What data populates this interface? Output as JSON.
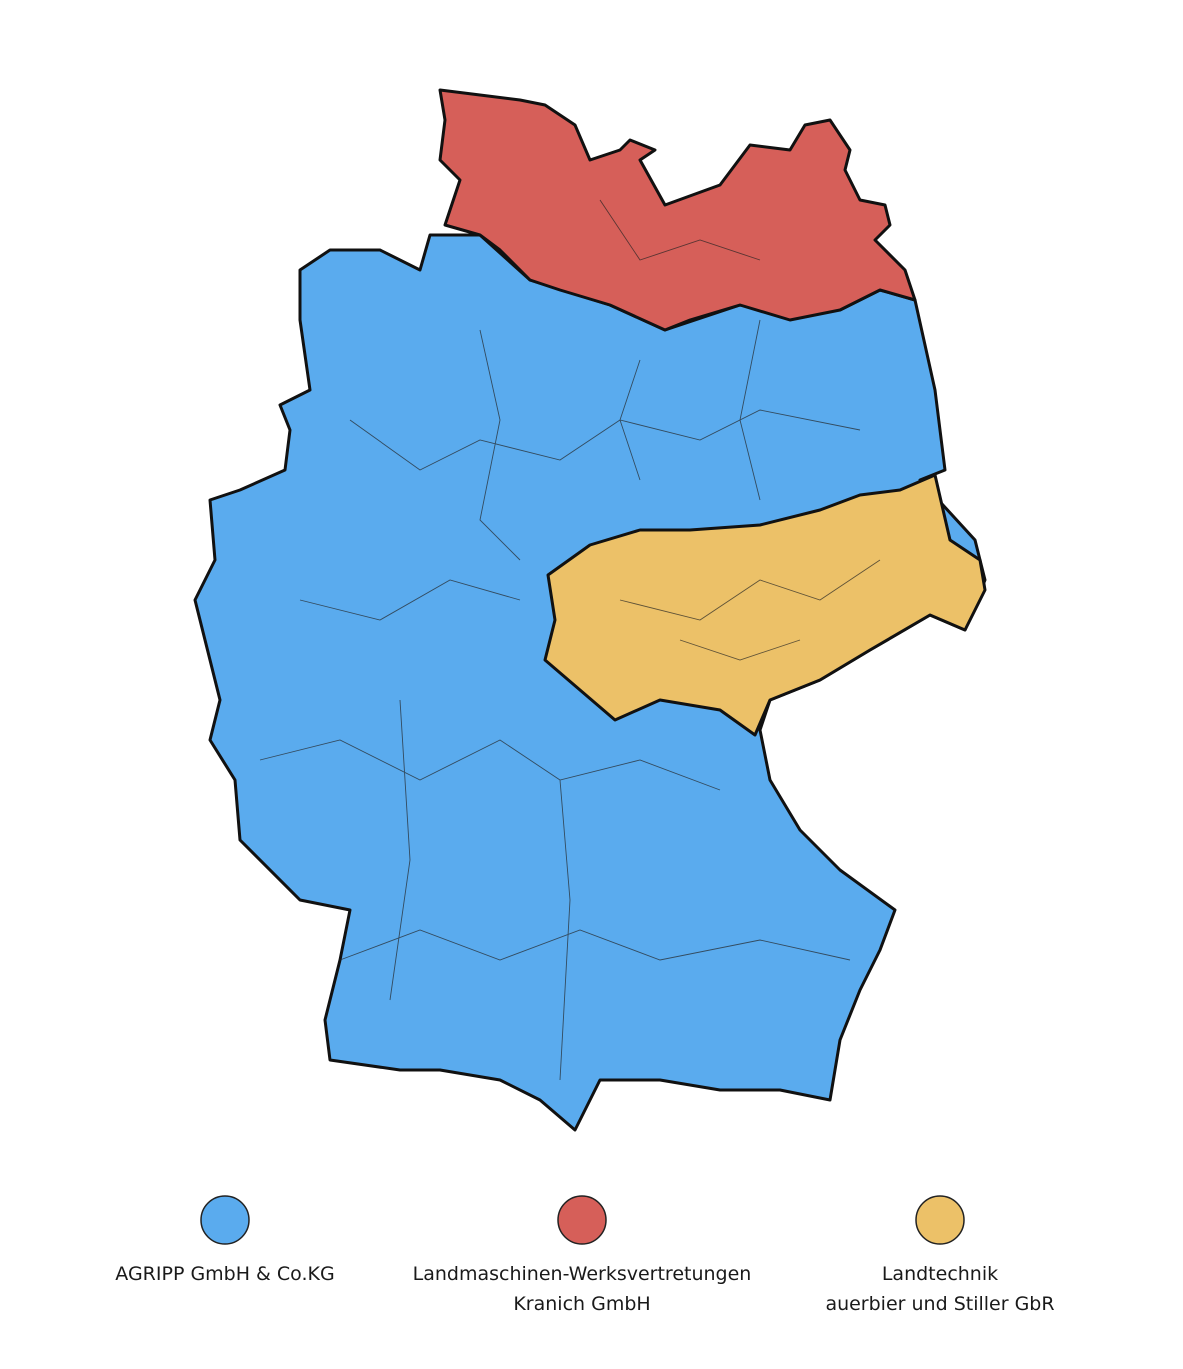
{
  "legend": [
    {
      "label_lines": [
        "AGRIPP GmbH & Co.KG"
      ],
      "color": "#5aabee"
    },
    {
      "label_lines": [
        "Landmaschinen-Werksvertretungen",
        "Kranich GmbH"
      ],
      "color": "#d65f59"
    },
    {
      "label_lines": [
        "Landtechnik",
        "auerbier und Stiller GbR"
      ],
      "color": "#ecc168"
    }
  ]
}
